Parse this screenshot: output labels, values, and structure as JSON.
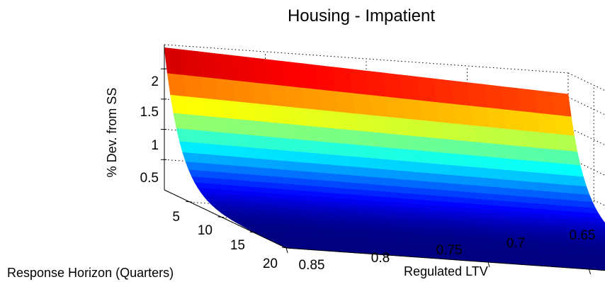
{
  "chart_data": {
    "type": "surface",
    "title": "Housing - Impatient",
    "xlabel": "Regulated LTV",
    "ylabel": "Response Horizon (Quarters)",
    "zlabel": "% Dev. from SS",
    "x_ticks": [
      "0.85",
      "0.8",
      "0.75",
      "0.7",
      "0.65"
    ],
    "y_ticks": [
      "5",
      "10",
      "15",
      "20"
    ],
    "z_ticks": [
      "0.5",
      "1",
      "1.5",
      "2"
    ],
    "xlim": [
      0.65,
      0.85
    ],
    "ylim": [
      1,
      20
    ],
    "zlim": [
      0,
      2.4
    ],
    "grid": true,
    "colormap": "jet",
    "surface": {
      "x": [
        0.65,
        0.85
      ],
      "peak_at_horizon_1": [
        2.05,
        2.35
      ],
      "value_at_horizon_20": [
        0.0,
        0.0
      ]
    }
  }
}
